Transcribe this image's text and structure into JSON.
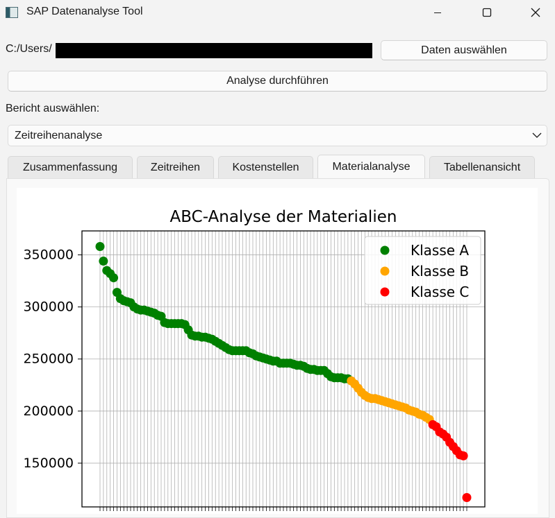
{
  "window": {
    "title": "SAP Datenanalyse Tool"
  },
  "file": {
    "path_prefix": "C:/Users/",
    "select_button": "Daten auswählen"
  },
  "analyze_button": "Analyse durchführen",
  "report": {
    "label": "Bericht auswählen:",
    "selected": "Zeitreihenanalyse"
  },
  "tabs": [
    {
      "label": "Zusammenfassung",
      "active": false
    },
    {
      "label": "Zeitreihen",
      "active": false
    },
    {
      "label": "Kostenstellen",
      "active": false
    },
    {
      "label": "Materialanalyse",
      "active": true
    },
    {
      "label": "Tabellenansicht",
      "active": false
    }
  ],
  "icons": {
    "minimize": "minimize-icon",
    "maximize": "maximize-icon",
    "close": "close-icon",
    "dropdown": "chevron-down-icon"
  },
  "chart_data": {
    "type": "scatter",
    "title": "ABC-Analyse der Materialien",
    "xlabel": "",
    "ylabel": "",
    "ylim": [
      108000,
      373000
    ],
    "yticks": [
      150000,
      200000,
      250000,
      300000,
      350000
    ],
    "ytick_labels": [
      "150000",
      "200000",
      "250000",
      "300000",
      "350000"
    ],
    "grid": true,
    "legend_position": "top-right",
    "series": [
      {
        "name": "Klasse A",
        "color": "#008000",
        "values": [
          358000,
          344000,
          335000,
          332000,
          328000,
          314000,
          308000,
          306000,
          305000,
          304000,
          300000,
          298000,
          297000,
          297000,
          296000,
          295000,
          294000,
          292000,
          291000,
          285000,
          284000,
          284000,
          284000,
          284000,
          284000,
          283000,
          278000,
          273000,
          272000,
          272000,
          271000,
          271000,
          270000,
          269000,
          267000,
          265000,
          263000,
          261000,
          259000,
          258000,
          258000,
          258000,
          258000,
          258000,
          256000,
          255000,
          253000,
          252000,
          251000,
          250000,
          249000,
          248000,
          248000,
          246000,
          246000,
          246000,
          246000,
          245000,
          244000,
          244000,
          243000,
          241000,
          240000,
          240000,
          239000,
          239000,
          239000,
          236000,
          233000,
          232000,
          232000,
          232000,
          231000,
          231000
        ]
      },
      {
        "name": "Klasse B",
        "color": "#ffa500",
        "values": [
          229000,
          226000,
          222000,
          218000,
          215000,
          213000,
          212000,
          212000,
          211000,
          210000,
          209000,
          208000,
          207000,
          206000,
          205000,
          204000,
          203000,
          201000,
          200000,
          199000,
          197000,
          196000,
          194000,
          192000
        ]
      },
      {
        "name": "Klasse C",
        "color": "#ff0000",
        "values": [
          187000,
          185000,
          180000,
          178000,
          175000,
          170000,
          166000,
          162000,
          158000,
          157000,
          117000
        ]
      }
    ]
  }
}
